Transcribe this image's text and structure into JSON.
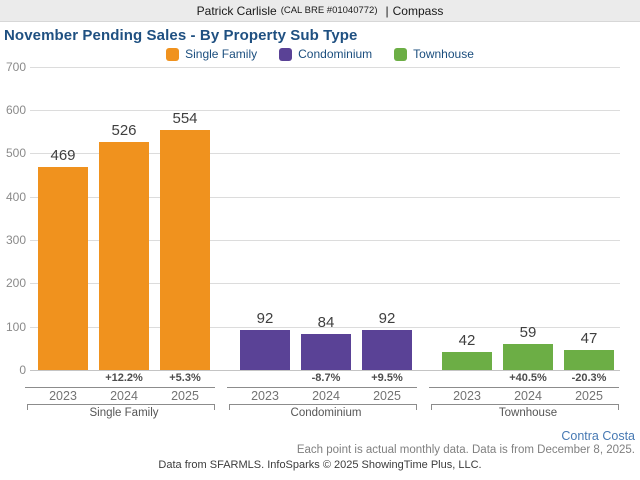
{
  "header": {
    "name": "Patrick Carlisle",
    "license": "(CAL BRE #01040772)",
    "separator": "|",
    "brand": "Compass"
  },
  "title": "November Pending Sales - By Property Sub Type",
  "legend": [
    {
      "label": "Single Family",
      "color": "#f0921e"
    },
    {
      "label": "Condominium",
      "color": "#5a4296"
    },
    {
      "label": "Townhouse",
      "color": "#6cae45"
    }
  ],
  "chart_data": {
    "type": "bar",
    "title": "November Pending Sales - By Property Sub Type",
    "ylabel": "",
    "xlabel": "",
    "ylim": [
      0,
      700
    ],
    "ytick_interval": 100,
    "grid": true,
    "legend_position": "top-center",
    "categories": [
      "2023",
      "2024",
      "2025"
    ],
    "groups": [
      {
        "name": "Single Family",
        "color": "#f0921e",
        "values": [
          469,
          526,
          554
        ],
        "pct_change": [
          "",
          "+12.2%",
          "+5.3%"
        ]
      },
      {
        "name": "Condominium",
        "color": "#5a4296",
        "values": [
          92,
          84,
          92
        ],
        "pct_change": [
          "",
          "-8.7%",
          "+9.5%"
        ]
      },
      {
        "name": "Townhouse",
        "color": "#6cae45",
        "values": [
          42,
          59,
          47
        ],
        "pct_change": [
          "",
          "+40.5%",
          "-20.3%"
        ]
      }
    ]
  },
  "footnotes": {
    "region": "Contra Costa",
    "data_note": "Each point is actual monthly data. Data is from December 8, 2025.",
    "attribution": "Data from SFARMLS. InfoSparks © 2025 ShowingTime Plus, LLC."
  }
}
